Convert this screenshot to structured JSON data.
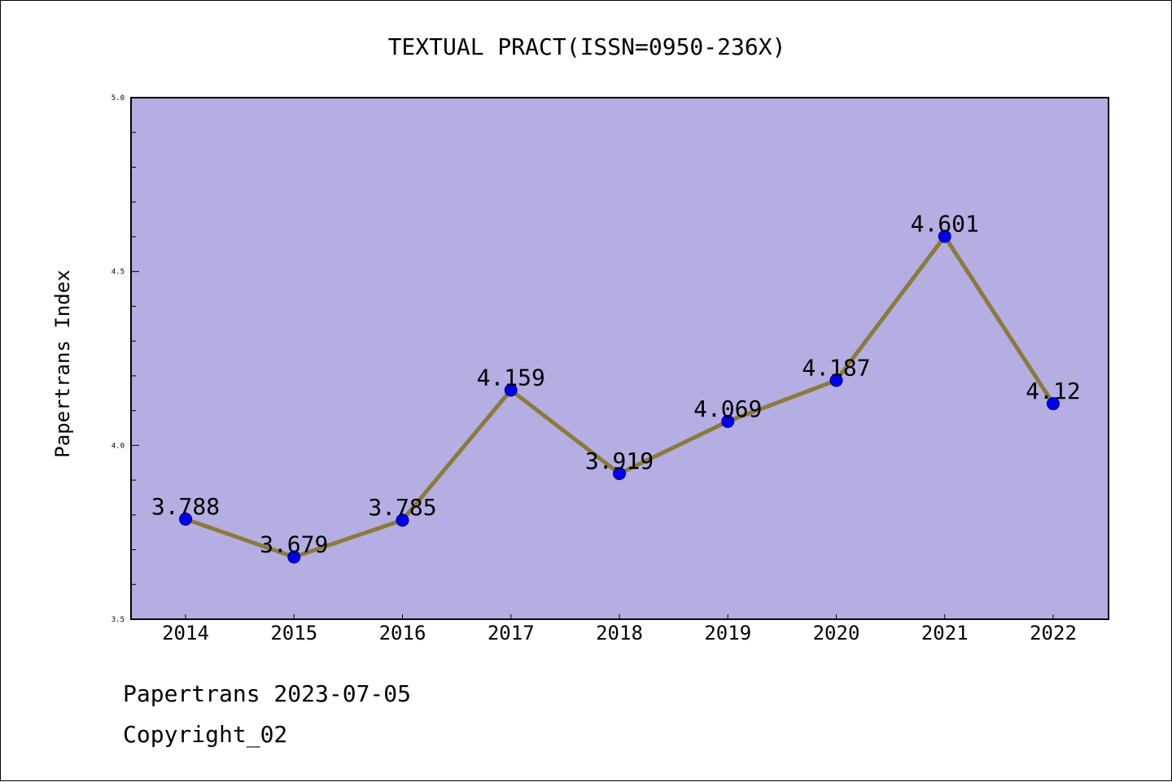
{
  "chart_data": {
    "type": "line",
    "title": "TEXTUAL PRACT(ISSN=0950-236X)",
    "xlabel": "",
    "ylabel": "Papertrans Index",
    "categories": [
      "2014",
      "2015",
      "2016",
      "2017",
      "2018",
      "2019",
      "2020",
      "2021",
      "2022"
    ],
    "values": [
      3.788,
      3.679,
      3.785,
      4.159,
      3.919,
      4.069,
      4.187,
      4.601,
      4.12
    ],
    "data_labels": [
      "3.788",
      "3.679",
      "3.785",
      "4.159",
      "3.919",
      "4.069",
      "4.187",
      "4.601",
      "4.12"
    ],
    "ylim": [
      3.5,
      5.0
    ],
    "y_major_ticks": [
      "3.5",
      "4.0",
      "4.5",
      "5.0"
    ],
    "y_minor_step": 0.1,
    "grid": false,
    "legend": "none",
    "colors": {
      "plot_background": "#b4aee2",
      "line": "#8b7a3a",
      "marker": "#0000ee",
      "marker_edge": "#000080"
    }
  },
  "footer": {
    "date_line": "Papertrans 2023-07-05",
    "copyright_line": "Copyright_02"
  }
}
